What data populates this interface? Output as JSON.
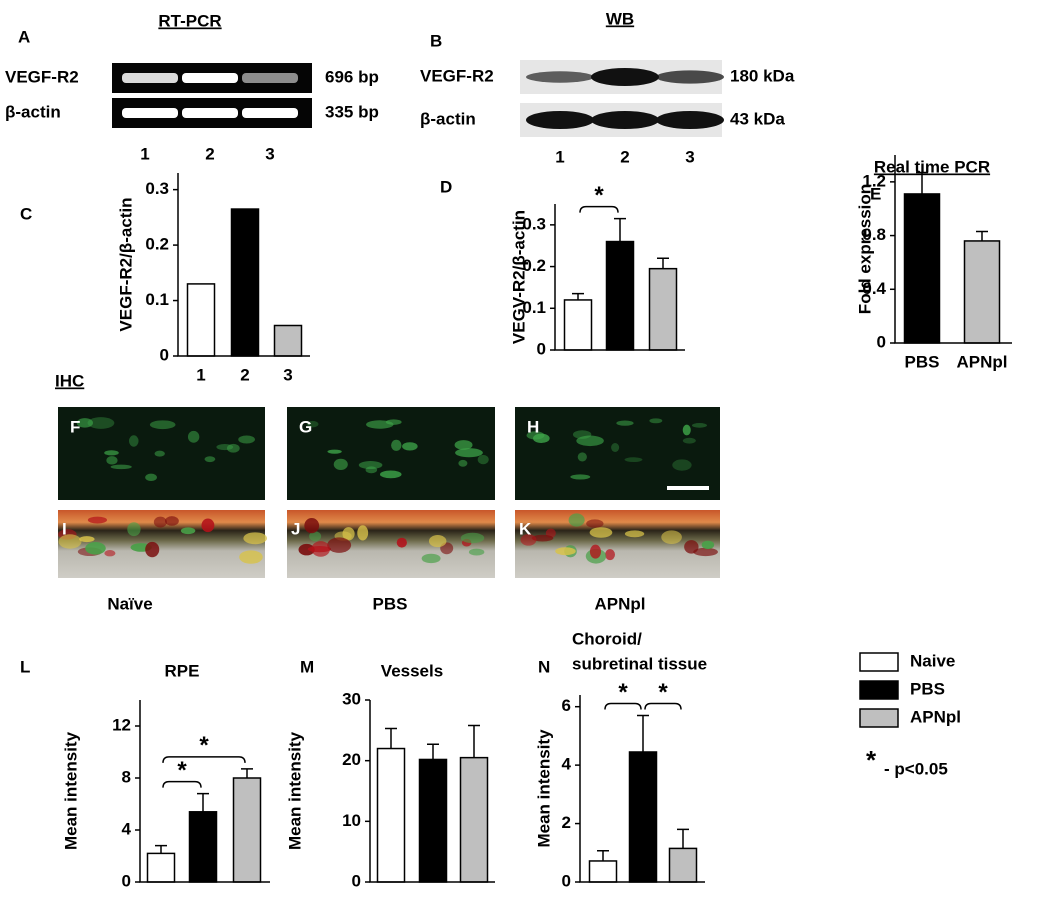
{
  "gels": [
    {
      "letter": "A",
      "title": "RT-PCR",
      "rows": [
        {
          "label": "VEGF-R2",
          "size": "696 bp"
        },
        {
          "label": "β-actin",
          "size": "335 bp"
        }
      ],
      "lanes": [
        "1",
        "2",
        "3"
      ]
    },
    {
      "letter": "B",
      "title": "WB",
      "rows": [
        {
          "label": "VEGF-R2",
          "size": "180 kDa"
        },
        {
          "label": "β-actin",
          "size": "43 kDa"
        }
      ],
      "lanes": [
        "1",
        "2",
        "3"
      ]
    }
  ],
  "ihc": {
    "title": "IHC",
    "top": [
      "F",
      "G",
      "H"
    ],
    "bottom": [
      "I",
      "J",
      "K"
    ],
    "groups": [
      "Naïve",
      "PBS",
      "APNpl"
    ]
  },
  "legend": {
    "entries": [
      {
        "name": "Naive",
        "color": "#ffffff"
      },
      {
        "name": "PBS",
        "color": "#000000"
      },
      {
        "name": "APNpl",
        "color": "#bfbfbf"
      }
    ],
    "symbol": "*",
    "note": "- p<0.05"
  },
  "chart_data": [
    {
      "type": "bar",
      "letter": "C",
      "y_label": "VEGF-R2/β-actin",
      "categories": [
        "1",
        "2",
        "3"
      ],
      "values": [
        0.13,
        0.265,
        0.055
      ],
      "colors": [
        "#ffffff",
        "#000000",
        "#bfbfbf"
      ],
      "ylim": [
        0,
        0.33
      ],
      "yticks": [
        0,
        0.1,
        0.2,
        0.3
      ]
    },
    {
      "type": "bar",
      "letter": "D",
      "y_label": "VEGV-R2/β-actin",
      "categories": [
        null,
        null,
        null
      ],
      "values": [
        0.12,
        0.26,
        0.195
      ],
      "errors": [
        0.015,
        0.055,
        0.025
      ],
      "colors": [
        "#ffffff",
        "#000000",
        "#bfbfbf"
      ],
      "ylim": [
        0,
        0.35
      ],
      "yticks": [
        0,
        0.1,
        0.2,
        0.3
      ],
      "significance": [
        {
          "label": "*",
          "from": 0,
          "to": 1
        }
      ]
    },
    {
      "type": "bar",
      "letter": "E",
      "title": "Real time PCR",
      "y_label": "Fold expression",
      "categories": [
        "PBS",
        "APNpl"
      ],
      "values": [
        1.11,
        0.76
      ],
      "errors": [
        0.16,
        0.07
      ],
      "colors": [
        "#000000",
        "#bfbfbf"
      ],
      "ylim": [
        0,
        1.4
      ],
      "yticks": [
        0,
        0.4,
        0.8,
        1.2
      ]
    },
    {
      "type": "bar",
      "letter": "L",
      "title": "RPE",
      "y_label": "Mean intensity",
      "categories": [
        null,
        null,
        null
      ],
      "values": [
        2.2,
        5.4,
        8.0
      ],
      "errors": [
        0.6,
        1.4,
        0.7
      ],
      "colors": [
        "#ffffff",
        "#000000",
        "#bfbfbf"
      ],
      "ylim": [
        0,
        14
      ],
      "yticks": [
        0,
        4,
        8,
        12
      ],
      "significance": [
        {
          "label": "*",
          "from": 0,
          "to": 1
        },
        {
          "label": "*",
          "from": 0,
          "to": 2
        }
      ]
    },
    {
      "type": "bar",
      "letter": "M",
      "title": "Vessels",
      "y_label": "Mean intensity",
      "categories": [
        null,
        null,
        null
      ],
      "values": [
        22,
        20.2,
        20.5
      ],
      "errors": [
        3.3,
        2.5,
        5.3
      ],
      "colors": [
        "#ffffff",
        "#000000",
        "#bfbfbf"
      ],
      "ylim": [
        0,
        30
      ],
      "yticks": [
        0,
        10,
        20,
        30
      ]
    },
    {
      "type": "bar",
      "letter": "N",
      "title": [
        "Choroid/",
        "subretinal tissue"
      ],
      "y_label": "Mean intensity",
      "categories": [
        null,
        null,
        null
      ],
      "values": [
        0.72,
        4.45,
        1.15
      ],
      "errors": [
        0.35,
        1.25,
        0.65
      ],
      "colors": [
        "#ffffff",
        "#000000",
        "#bfbfbf"
      ],
      "ylim": [
        0,
        6.4
      ],
      "yticks": [
        0,
        2,
        4,
        6
      ],
      "significance": [
        {
          "label": "*",
          "from": 0,
          "to": 1
        },
        {
          "label": "*",
          "from": 1,
          "to": 2
        }
      ]
    }
  ]
}
